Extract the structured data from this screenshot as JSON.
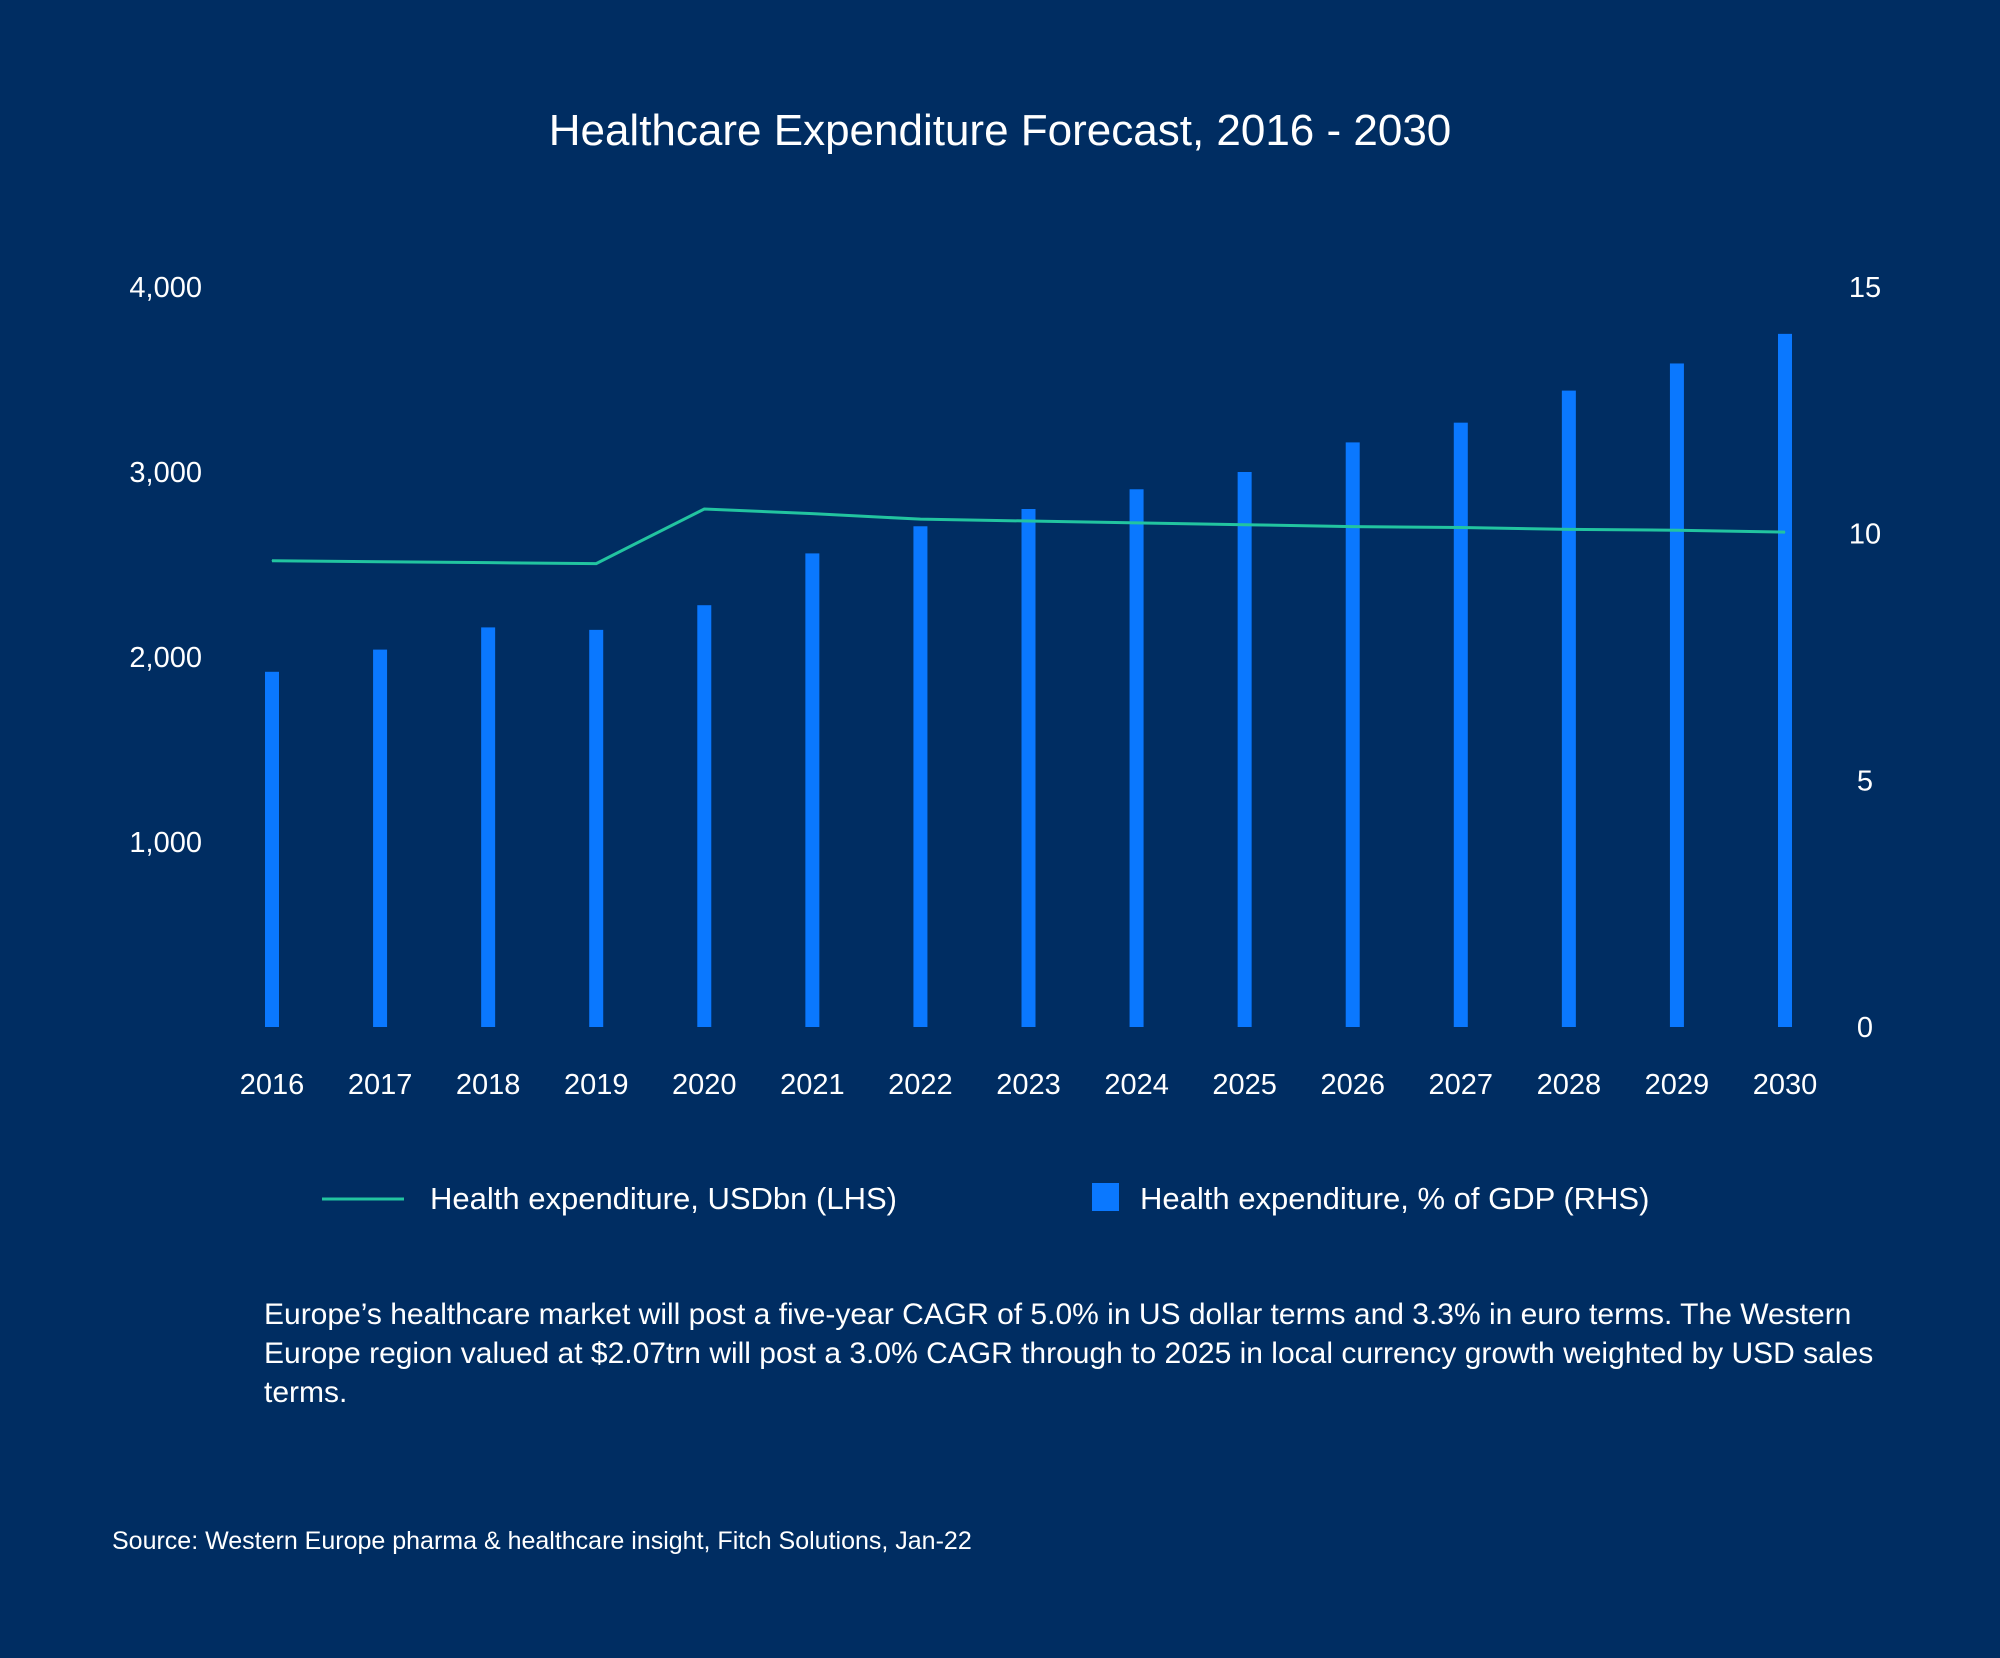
{
  "chart_data": {
    "type": "bar+line",
    "title": "Healthcare Expenditure Forecast, 2016 - 2030",
    "categories": [
      "2016",
      "2017",
      "2018",
      "2019",
      "2020",
      "2021",
      "2022",
      "2023",
      "2024",
      "2025",
      "2026",
      "2027",
      "2028",
      "2029",
      "2030"
    ],
    "series": [
      {
        "name": "Health expenditure, USDbn (LHS)",
        "type": "line",
        "axis": "left",
        "color": "#22c4a0",
        "values": [
          2520,
          2515,
          2510,
          2505,
          2800,
          2775,
          2745,
          2735,
          2725,
          2715,
          2705,
          2700,
          2690,
          2685,
          2675
        ]
      },
      {
        "name": "Health expenditure, % of GDP (RHS)",
        "type": "bar",
        "axis": "right",
        "color": "#0a78ff",
        "values": [
          7.2,
          7.65,
          8.1,
          8.05,
          8.55,
          9.6,
          10.15,
          10.5,
          10.9,
          11.25,
          11.85,
          12.25,
          12.9,
          13.45,
          14.05
        ]
      }
    ],
    "left_axis": {
      "ylim": [
        0,
        4000
      ],
      "ticks": [
        "1,000",
        "2,000",
        "3,000",
        "4,000"
      ],
      "tick_values": [
        1000,
        2000,
        3000,
        4000
      ]
    },
    "right_axis": {
      "ylim": [
        0,
        15
      ],
      "ticks": [
        "0",
        "5",
        "10",
        "15"
      ],
      "tick_values": [
        0,
        5,
        10,
        15
      ]
    },
    "legend": [
      "Health expenditure, USDbn (LHS)",
      "Health expenditure, % of GDP (RHS)"
    ],
    "grid": false
  },
  "caption": "Europe’s healthcare market will post a five-year CAGR of 5.0% in US dollar terms and 3.3% in euro terms. The Western Europe region valued at $2.07trn will post a 3.0% CAGR through to 2025 in local currency growth weighted by USD sales terms.",
  "source": "Source: Western Europe pharma & healthcare insight, Fitch Solutions, Jan-22",
  "colors": {
    "background": "#002d62",
    "bar": "#0a78ff",
    "line": "#22c4a0",
    "text": "#ffffff"
  }
}
